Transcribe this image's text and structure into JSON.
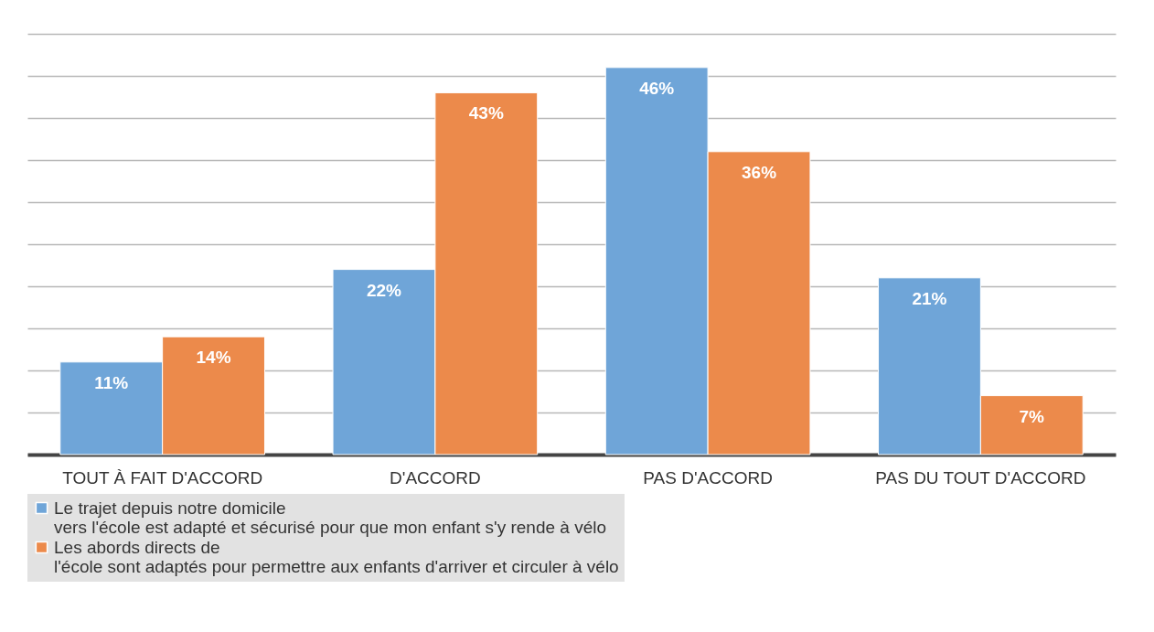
{
  "chart_data": {
    "type": "bar",
    "categories": [
      "TOUT À FAIT D'ACCORD",
      "D'ACCORD",
      "PAS D'ACCORD",
      "PAS DU TOUT D'ACCORD"
    ],
    "series": [
      {
        "name": "Le trajet depuis notre domicile\nvers l'école est adapté et sécurisé pour que mon enfant s'y rende à vélo",
        "color": "#6fa5d8",
        "values": [
          11,
          22,
          46,
          21
        ],
        "value_labels": [
          "11%",
          "22%",
          "46%",
          "21%"
        ]
      },
      {
        "name": "Les abords directs de\nl'école sont adaptés pour permettre aux enfants d'arriver et circuler à vélo",
        "color": "#ec8a4b",
        "values": [
          14,
          43,
          36,
          7
        ],
        "value_labels": [
          "14%",
          "43%",
          "36%",
          "7%"
        ]
      }
    ],
    "grid": "y",
    "tick_labels": "x",
    "legend": "bottom"
  }
}
